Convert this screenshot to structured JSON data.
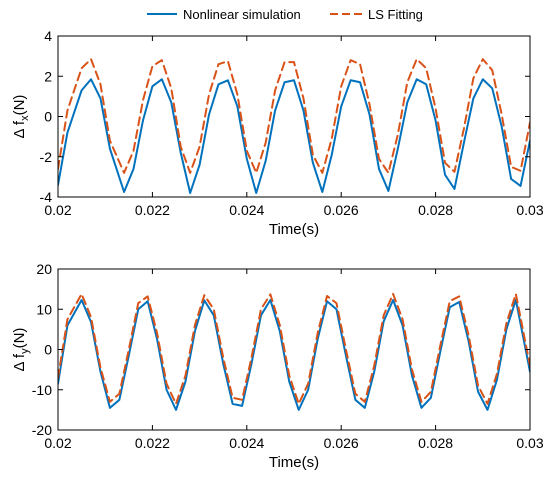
{
  "legend": {
    "position": "top-center",
    "entries": [
      {
        "label": "Nonlinear simulation",
        "color": "#0072BD",
        "style": "solid"
      },
      {
        "label": "LS Fitting",
        "color": "#D95319",
        "style": "dashed"
      }
    ]
  },
  "chart_data": [
    {
      "type": "line",
      "title": "",
      "xlabel": "Time(s)",
      "ylabel_main": "Δ f",
      "ylabel_sub": "x",
      "ylabel_unit": "(N)",
      "xlim": [
        0.02,
        0.03
      ],
      "ylim": [
        -4,
        4
      ],
      "xticks": [
        0.02,
        0.022,
        0.024,
        0.026,
        0.028,
        0.03
      ],
      "xtick_labels": [
        "0.02",
        "0.022",
        "0.024",
        "0.026",
        "0.028",
        "0.03"
      ],
      "yticks": [
        -4,
        -2,
        0,
        2,
        4
      ],
      "ytick_labels": [
        "-4",
        "-2",
        "0",
        "2",
        "4"
      ],
      "grid": false,
      "series": [
        {
          "name": "Nonlinear simulation",
          "color": "#0072BD",
          "dashed": false,
          "x": [
            0.02,
            0.0202,
            0.0205,
            0.0207,
            0.0209,
            0.0211,
            0.0214,
            0.0216,
            0.0218,
            0.022,
            0.0222,
            0.0224,
            0.0226,
            0.0228,
            0.023,
            0.0232,
            0.0234,
            0.0236,
            0.0238,
            0.024,
            0.0242,
            0.0244,
            0.0246,
            0.0248,
            0.025,
            0.0252,
            0.0254,
            0.0256,
            0.0258,
            0.026,
            0.0262,
            0.0264,
            0.0266,
            0.0268,
            0.027,
            0.0272,
            0.0274,
            0.0276,
            0.0278,
            0.028,
            0.0282,
            0.0284,
            0.0286,
            0.0288,
            0.029,
            0.0292,
            0.0294,
            0.0296,
            0.0298,
            0.03
          ],
          "y": [
            -3.4,
            -0.8,
            1.3,
            1.85,
            0.9,
            -1.6,
            -3.75,
            -2.6,
            -0.2,
            1.5,
            1.85,
            0.7,
            -1.8,
            -3.8,
            -2.4,
            0.1,
            1.6,
            1.8,
            0.5,
            -2.1,
            -3.8,
            -2.2,
            0.3,
            1.7,
            1.8,
            0.3,
            -2.3,
            -3.75,
            -1.9,
            0.5,
            1.8,
            1.7,
            0.1,
            -2.6,
            -3.7,
            -1.6,
            0.7,
            1.85,
            1.6,
            -0.2,
            -2.9,
            -3.6,
            -1.3,
            0.9,
            1.85,
            1.4,
            -0.5,
            -3.1,
            -3.45,
            -1.2
          ]
        },
        {
          "name": "LS Fitting",
          "color": "#D95319",
          "dashed": true,
          "x": [
            0.02,
            0.0202,
            0.0205,
            0.0207,
            0.0209,
            0.0211,
            0.0214,
            0.0216,
            0.0218,
            0.022,
            0.0222,
            0.0224,
            0.0226,
            0.0228,
            0.023,
            0.0232,
            0.0234,
            0.0236,
            0.0238,
            0.024,
            0.0242,
            0.0244,
            0.0246,
            0.0248,
            0.025,
            0.0252,
            0.0254,
            0.0256,
            0.0258,
            0.026,
            0.0262,
            0.0264,
            0.0266,
            0.0268,
            0.027,
            0.0272,
            0.0274,
            0.0276,
            0.0278,
            0.028,
            0.0282,
            0.0284,
            0.0286,
            0.0288,
            0.029,
            0.0292,
            0.0294,
            0.0296,
            0.0298,
            0.03
          ],
          "y": [
            -2.6,
            0.3,
            2.4,
            2.85,
            1.6,
            -1.2,
            -2.8,
            -1.7,
            0.8,
            2.5,
            2.8,
            1.4,
            -1.5,
            -2.8,
            -1.5,
            1.1,
            2.6,
            2.75,
            1.1,
            -1.7,
            -2.8,
            -1.3,
            1.3,
            2.7,
            2.7,
            0.9,
            -1.9,
            -2.8,
            -1.1,
            1.5,
            2.8,
            2.6,
            0.6,
            -2.1,
            -2.8,
            -0.9,
            1.7,
            2.85,
            2.4,
            0.4,
            -2.3,
            -2.75,
            -0.6,
            1.9,
            2.85,
            2.3,
            0.1,
            -2.5,
            -2.7,
            -0.3
          ]
        }
      ]
    },
    {
      "type": "line",
      "title": "",
      "xlabel": "Time(s)",
      "ylabel_main": "Δ f",
      "ylabel_sub": "y",
      "ylabel_unit": "(N)",
      "xlim": [
        0.02,
        0.03
      ],
      "ylim": [
        -20,
        20
      ],
      "xticks": [
        0.02,
        0.022,
        0.024,
        0.026,
        0.028,
        0.03
      ],
      "xtick_labels": [
        "0.02",
        "0.022",
        "0.024",
        "0.026",
        "0.028",
        "0.03"
      ],
      "yticks": [
        -20,
        -10,
        0,
        10,
        20
      ],
      "ytick_labels": [
        "-20",
        "-10",
        "0",
        "10",
        "20"
      ],
      "grid": false,
      "series": [
        {
          "name": "Nonlinear simulation",
          "color": "#0072BD",
          "dashed": false,
          "x": [
            0.02,
            0.0202,
            0.0205,
            0.0207,
            0.0209,
            0.0211,
            0.0213,
            0.0215,
            0.0217,
            0.0219,
            0.0221,
            0.0223,
            0.0225,
            0.0227,
            0.0229,
            0.0231,
            0.0233,
            0.0235,
            0.0237,
            0.0239,
            0.0241,
            0.0243,
            0.0245,
            0.0247,
            0.0249,
            0.0251,
            0.0253,
            0.0255,
            0.0257,
            0.0259,
            0.0261,
            0.0263,
            0.0265,
            0.0267,
            0.0269,
            0.0271,
            0.0273,
            0.0275,
            0.0277,
            0.0279,
            0.0281,
            0.0283,
            0.0285,
            0.0287,
            0.0289,
            0.0291,
            0.0293,
            0.0295,
            0.0297,
            0.03
          ],
          "y": [
            -8.5,
            6.0,
            12.3,
            6.8,
            -5.5,
            -14.5,
            -12.5,
            -1.5,
            10.0,
            12.0,
            2.5,
            -10.0,
            -15.0,
            -8.0,
            4.5,
            12.2,
            8.5,
            -3.5,
            -13.5,
            -14.0,
            -3.5,
            8.5,
            12.3,
            4.5,
            -8.0,
            -15.0,
            -10.0,
            2.5,
            12.0,
            10.0,
            -1.5,
            -12.5,
            -14.5,
            -5.5,
            7.0,
            12.3,
            6.0,
            -6.5,
            -14.5,
            -12.0,
            -0.5,
            10.5,
            11.8,
            2.0,
            -10.5,
            -15.0,
            -7.5,
            5.0,
            12.3,
            -5.5
          ]
        },
        {
          "name": "LS Fitting",
          "color": "#D95319",
          "dashed": true,
          "x": [
            0.02,
            0.0202,
            0.0205,
            0.0207,
            0.0209,
            0.0211,
            0.0213,
            0.0215,
            0.0217,
            0.0219,
            0.0221,
            0.0223,
            0.0225,
            0.0227,
            0.0229,
            0.0231,
            0.0233,
            0.0235,
            0.0237,
            0.0239,
            0.0241,
            0.0243,
            0.0245,
            0.0247,
            0.0249,
            0.0251,
            0.0253,
            0.0255,
            0.0257,
            0.0259,
            0.0261,
            0.0263,
            0.0265,
            0.0267,
            0.0269,
            0.0271,
            0.0273,
            0.0275,
            0.0277,
            0.0279,
            0.0281,
            0.0283,
            0.0285,
            0.0287,
            0.0289,
            0.0291,
            0.0293,
            0.0295,
            0.0297,
            0.03
          ],
          "y": [
            -7.0,
            7.5,
            13.8,
            8.0,
            -4.5,
            -13.0,
            -11.0,
            0.0,
            11.5,
            13.2,
            4.0,
            -8.5,
            -13.5,
            -6.5,
            6.0,
            13.5,
            10.0,
            -2.0,
            -12.0,
            -12.5,
            -2.0,
            10.0,
            13.7,
            6.0,
            -6.5,
            -13.5,
            -8.5,
            4.0,
            13.3,
            11.5,
            0.0,
            -11.0,
            -13.0,
            -4.0,
            8.5,
            13.8,
            7.5,
            -5.0,
            -13.0,
            -10.5,
            1.0,
            12.0,
            13.2,
            3.5,
            -9.0,
            -13.5,
            -6.0,
            6.5,
            13.8,
            -4.0
          ]
        }
      ]
    }
  ]
}
